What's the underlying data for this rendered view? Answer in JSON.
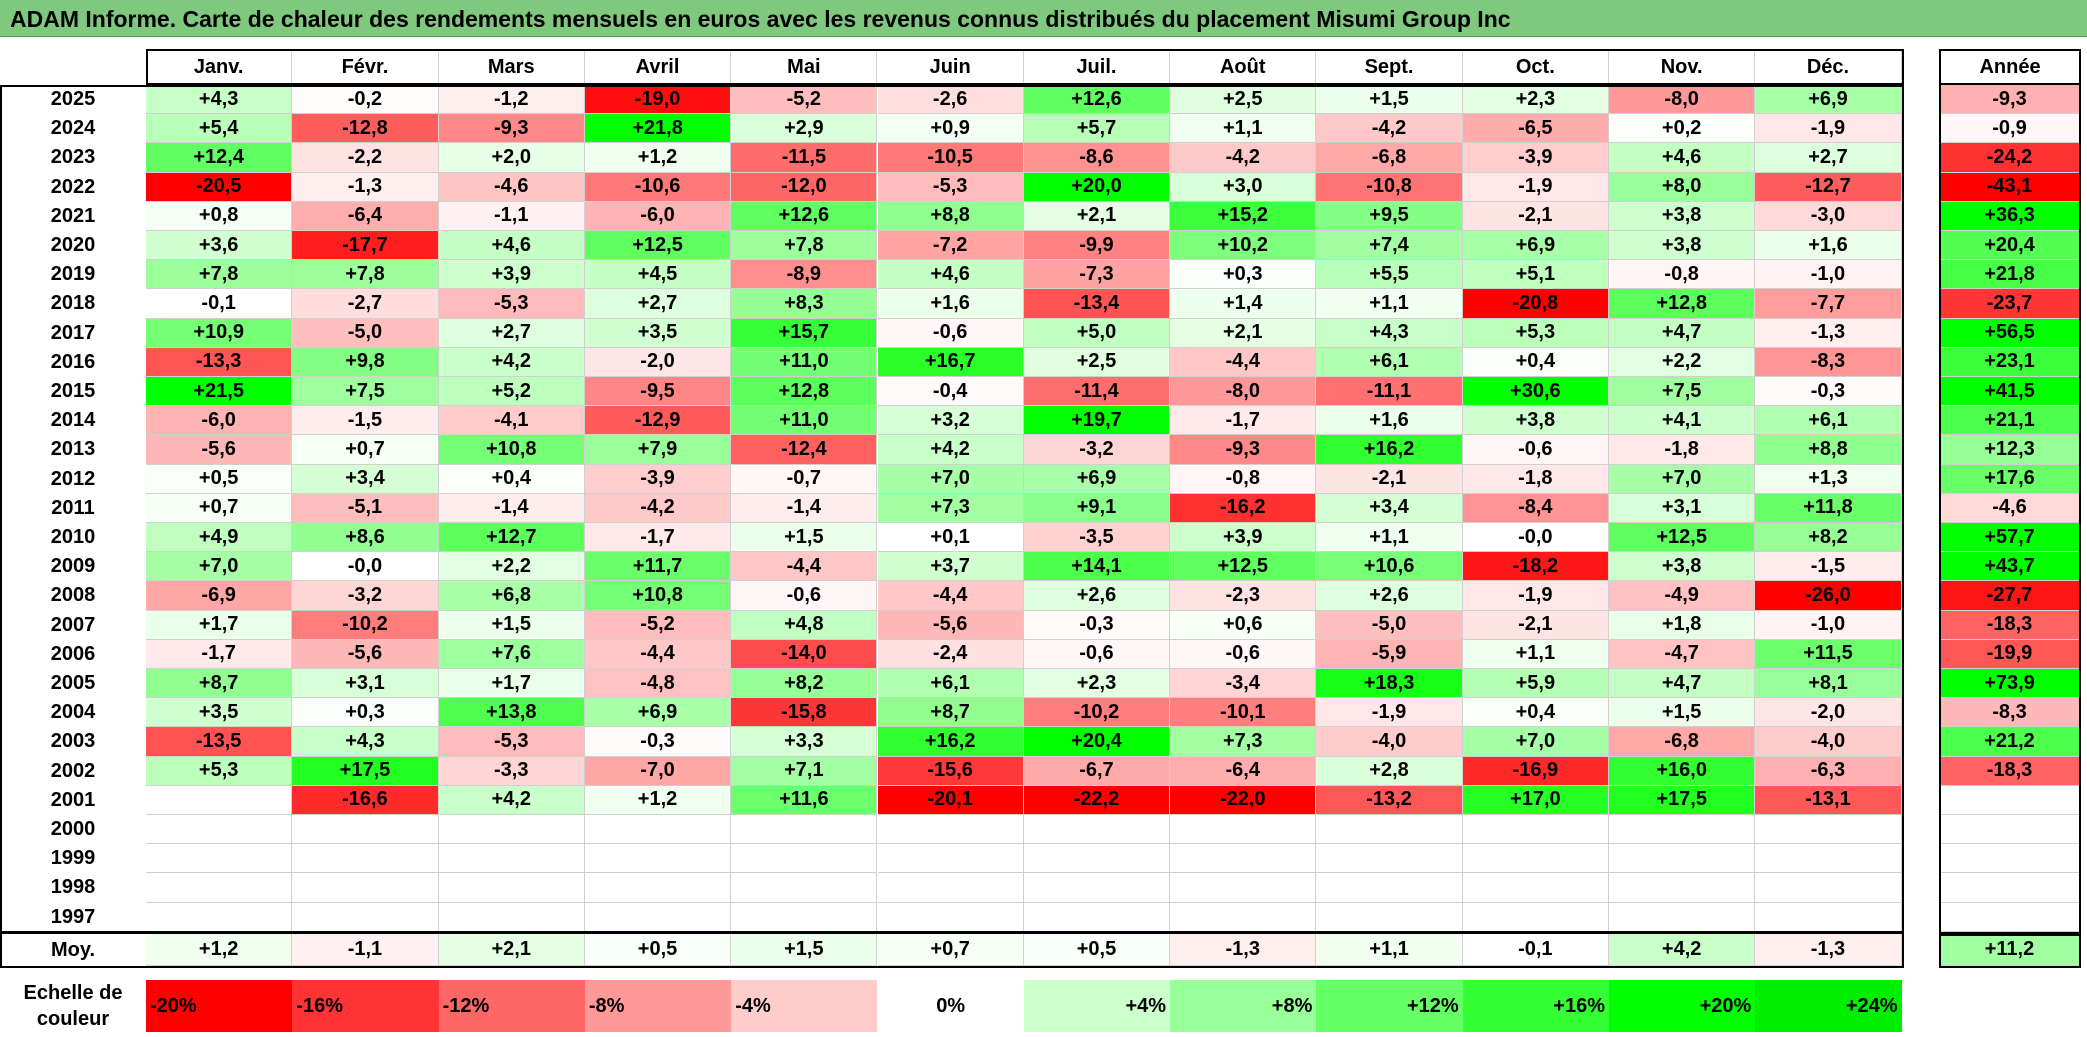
{
  "title": "ADAM Informe. Carte de chaleur des rendements mensuels en euros avec les revenus connus distribués du placement Misumi Group Inc",
  "chart_data": {
    "type": "heatmap",
    "title": "ADAM Informe. Carte de chaleur des rendements mensuels en euros avec les revenus connus distribués du placement Misumi Group Inc",
    "columns": [
      "Janv.",
      "Févr.",
      "Mars",
      "Avril",
      "Mai",
      "Juin",
      "Juil.",
      "Août",
      "Sept.",
      "Oct.",
      "Nov.",
      "Déc."
    ],
    "year_column_label": "Année",
    "rows": [
      {
        "year": "2025",
        "values": [
          "+4,3",
          "-0,2",
          "-1,2",
          "-19,0",
          "-5,2",
          "-2,6",
          "+12,6",
          "+2,5",
          "+1,5",
          "+2,3",
          "-8,0",
          "+6,9"
        ],
        "annual": "-9,3"
      },
      {
        "year": "2024",
        "values": [
          "+5,4",
          "-12,8",
          "-9,3",
          "+21,8",
          "+2,9",
          "+0,9",
          "+5,7",
          "+1,1",
          "-4,2",
          "-6,5",
          "+0,2",
          "-1,9"
        ],
        "annual": "-0,9"
      },
      {
        "year": "2023",
        "values": [
          "+12,4",
          "-2,2",
          "+2,0",
          "+1,2",
          "-11,5",
          "-10,5",
          "-8,6",
          "-4,2",
          "-6,8",
          "-3,9",
          "+4,6",
          "+2,7"
        ],
        "annual": "-24,2"
      },
      {
        "year": "2022",
        "values": [
          "-20,5",
          "-1,3",
          "-4,6",
          "-10,6",
          "-12,0",
          "-5,3",
          "+20,0",
          "+3,0",
          "-10,8",
          "-1,9",
          "+8,0",
          "-12,7"
        ],
        "annual": "-43,1"
      },
      {
        "year": "2021",
        "values": [
          "+0,8",
          "-6,4",
          "-1,1",
          "-6,0",
          "+12,6",
          "+8,8",
          "+2,1",
          "+15,2",
          "+9,5",
          "-2,1",
          "+3,8",
          "-3,0"
        ],
        "annual": "+36,3"
      },
      {
        "year": "2020",
        "values": [
          "+3,6",
          "-17,7",
          "+4,6",
          "+12,5",
          "+7,8",
          "-7,2",
          "-9,9",
          "+10,2",
          "+7,4",
          "+6,9",
          "+3,8",
          "+1,6"
        ],
        "annual": "+20,4"
      },
      {
        "year": "2019",
        "values": [
          "+7,8",
          "+7,8",
          "+3,9",
          "+4,5",
          "-8,9",
          "+4,6",
          "-7,3",
          "+0,3",
          "+5,5",
          "+5,1",
          "-0,8",
          "-1,0"
        ],
        "annual": "+21,8"
      },
      {
        "year": "2018",
        "values": [
          "-0,1",
          "-2,7",
          "-5,3",
          "+2,7",
          "+8,3",
          "+1,6",
          "-13,4",
          "+1,4",
          "+1,1",
          "-20,8",
          "+12,8",
          "-7,7"
        ],
        "annual": "-23,7"
      },
      {
        "year": "2017",
        "values": [
          "+10,9",
          "-5,0",
          "+2,7",
          "+3,5",
          "+15,7",
          "-0,6",
          "+5,0",
          "+2,1",
          "+4,3",
          "+5,3",
          "+4,7",
          "-1,3"
        ],
        "annual": "+56,5"
      },
      {
        "year": "2016",
        "values": [
          "-13,3",
          "+9,8",
          "+4,2",
          "-2,0",
          "+11,0",
          "+16,7",
          "+2,5",
          "-4,4",
          "+6,1",
          "+0,4",
          "+2,2",
          "-8,3"
        ],
        "annual": "+23,1"
      },
      {
        "year": "2015",
        "values": [
          "+21,5",
          "+7,5",
          "+5,2",
          "-9,5",
          "+12,8",
          "-0,4",
          "-11,4",
          "-8,0",
          "-11,1",
          "+30,6",
          "+7,5",
          "-0,3"
        ],
        "annual": "+41,5"
      },
      {
        "year": "2014",
        "values": [
          "-6,0",
          "-1,5",
          "-4,1",
          "-12,9",
          "+11,0",
          "+3,2",
          "+19,7",
          "-1,7",
          "+1,6",
          "+3,8",
          "+4,1",
          "+6,1"
        ],
        "annual": "+21,1"
      },
      {
        "year": "2013",
        "values": [
          "-5,6",
          "+0,7",
          "+10,8",
          "+7,9",
          "-12,4",
          "+4,2",
          "-3,2",
          "-9,3",
          "+16,2",
          "-0,6",
          "-1,8",
          "+8,8"
        ],
        "annual": "+12,3"
      },
      {
        "year": "2012",
        "values": [
          "+0,5",
          "+3,4",
          "+0,4",
          "-3,9",
          "-0,7",
          "+7,0",
          "+6,9",
          "-0,8",
          "-2,1",
          "-1,8",
          "+7,0",
          "+1,3"
        ],
        "annual": "+17,6"
      },
      {
        "year": "2011",
        "values": [
          "+0,7",
          "-5,1",
          "-1,4",
          "-4,2",
          "-1,4",
          "+7,3",
          "+9,1",
          "-16,2",
          "+3,4",
          "-8,4",
          "+3,1",
          "+11,8"
        ],
        "annual": "-4,6"
      },
      {
        "year": "2010",
        "values": [
          "+4,9",
          "+8,6",
          "+12,7",
          "-1,7",
          "+1,5",
          "+0,1",
          "-3,5",
          "+3,9",
          "+1,1",
          "-0,0",
          "+12,5",
          "+8,2"
        ],
        "annual": "+57,7"
      },
      {
        "year": "2009",
        "values": [
          "+7,0",
          "-0,0",
          "+2,2",
          "+11,7",
          "-4,4",
          "+3,7",
          "+14,1",
          "+12,5",
          "+10,6",
          "-18,2",
          "+3,8",
          "-1,5"
        ],
        "annual": "+43,7"
      },
      {
        "year": "2008",
        "values": [
          "-6,9",
          "-3,2",
          "+6,8",
          "+10,8",
          "-0,6",
          "-4,4",
          "+2,6",
          "-2,3",
          "+2,6",
          "-1,9",
          "-4,9",
          "-26,0"
        ],
        "annual": "-27,7"
      },
      {
        "year": "2007",
        "values": [
          "+1,7",
          "-10,2",
          "+1,5",
          "-5,2",
          "+4,8",
          "-5,6",
          "-0,3",
          "+0,6",
          "-5,0",
          "-2,1",
          "+1,8",
          "-1,0"
        ],
        "annual": "-18,3"
      },
      {
        "year": "2006",
        "values": [
          "-1,7",
          "-5,6",
          "+7,6",
          "-4,4",
          "-14,0",
          "-2,4",
          "-0,6",
          "-0,6",
          "-5,9",
          "+1,1",
          "-4,7",
          "+11,5"
        ],
        "annual": "-19,9"
      },
      {
        "year": "2005",
        "values": [
          "+8,7",
          "+3,1",
          "+1,7",
          "-4,8",
          "+8,2",
          "+6,1",
          "+2,3",
          "-3,4",
          "+18,3",
          "+5,9",
          "+4,7",
          "+8,1"
        ],
        "annual": "+73,9"
      },
      {
        "year": "2004",
        "values": [
          "+3,5",
          "+0,3",
          "+13,8",
          "+6,9",
          "-15,8",
          "+8,7",
          "-10,2",
          "-10,1",
          "-1,9",
          "+0,4",
          "+1,5",
          "-2,0"
        ],
        "annual": "-8,3"
      },
      {
        "year": "2003",
        "values": [
          "-13,5",
          "+4,3",
          "-5,3",
          "-0,3",
          "+3,3",
          "+16,2",
          "+20,4",
          "+7,3",
          "-4,0",
          "+7,0",
          "-6,8",
          "-4,0"
        ],
        "annual": "+21,2"
      },
      {
        "year": "2002",
        "values": [
          "+5,3",
          "+17,5",
          "-3,3",
          "-7,0",
          "+7,1",
          "-15,6",
          "-6,7",
          "-6,4",
          "+2,8",
          "-16,9",
          "+16,0",
          "-6,3"
        ],
        "annual": "-18,3"
      },
      {
        "year": "2001",
        "values": [
          "",
          "-16,6",
          "+4,2",
          "+1,2",
          "+11,6",
          "-20,1",
          "-22,2",
          "-22,0",
          "-13,2",
          "+17,0",
          "+17,5",
          "-13,1"
        ],
        "annual": ""
      },
      {
        "year": "2000",
        "values": [
          "",
          "",
          "",
          "",
          "",
          "",
          "",
          "",
          "",
          "",
          "",
          ""
        ],
        "annual": ""
      },
      {
        "year": "1999",
        "values": [
          "",
          "",
          "",
          "",
          "",
          "",
          "",
          "",
          "",
          "",
          "",
          ""
        ],
        "annual": ""
      },
      {
        "year": "1998",
        "values": [
          "",
          "",
          "",
          "",
          "",
          "",
          "",
          "",
          "",
          "",
          "",
          ""
        ],
        "annual": ""
      },
      {
        "year": "1997",
        "values": [
          "",
          "",
          "",
          "",
          "",
          "",
          "",
          "",
          "",
          "",
          "",
          ""
        ],
        "annual": ""
      }
    ],
    "average": {
      "label": "Moy.",
      "values": [
        "+1,2",
        "-1,1",
        "+2,1",
        "+0,5",
        "+1,5",
        "+0,7",
        "+0,5",
        "-1,3",
        "+1,1",
        "-0,1",
        "+4,2",
        "-1,3"
      ],
      "annual": "+11,2"
    },
    "color_scale": {
      "label": "Echelle de couleur",
      "steps": [
        {
          "label": "-20%",
          "value": -20,
          "color": "#ff0000"
        },
        {
          "label": "-16%",
          "value": -16,
          "color": "#ff3333"
        },
        {
          "label": "-12%",
          "value": -12,
          "color": "#ff6666"
        },
        {
          "label": "-8%",
          "value": -8,
          "color": "#ff9999"
        },
        {
          "label": "-4%",
          "value": -4,
          "color": "#ffcccc"
        },
        {
          "label": "0%",
          "value": 0,
          "color": "#ffffff"
        },
        {
          "label": "+4%",
          "value": 4,
          "color": "#ccffcc"
        },
        {
          "label": "+8%",
          "value": 8,
          "color": "#99ff99"
        },
        {
          "label": "+12%",
          "value": 12,
          "color": "#66ff66"
        },
        {
          "label": "+16%",
          "value": 16,
          "color": "#33ff33"
        },
        {
          "label": "+20%",
          "value": 20,
          "color": "#00ff00"
        },
        {
          "label": "+24%",
          "value": 24,
          "color": "#00ee00"
        }
      ]
    }
  }
}
